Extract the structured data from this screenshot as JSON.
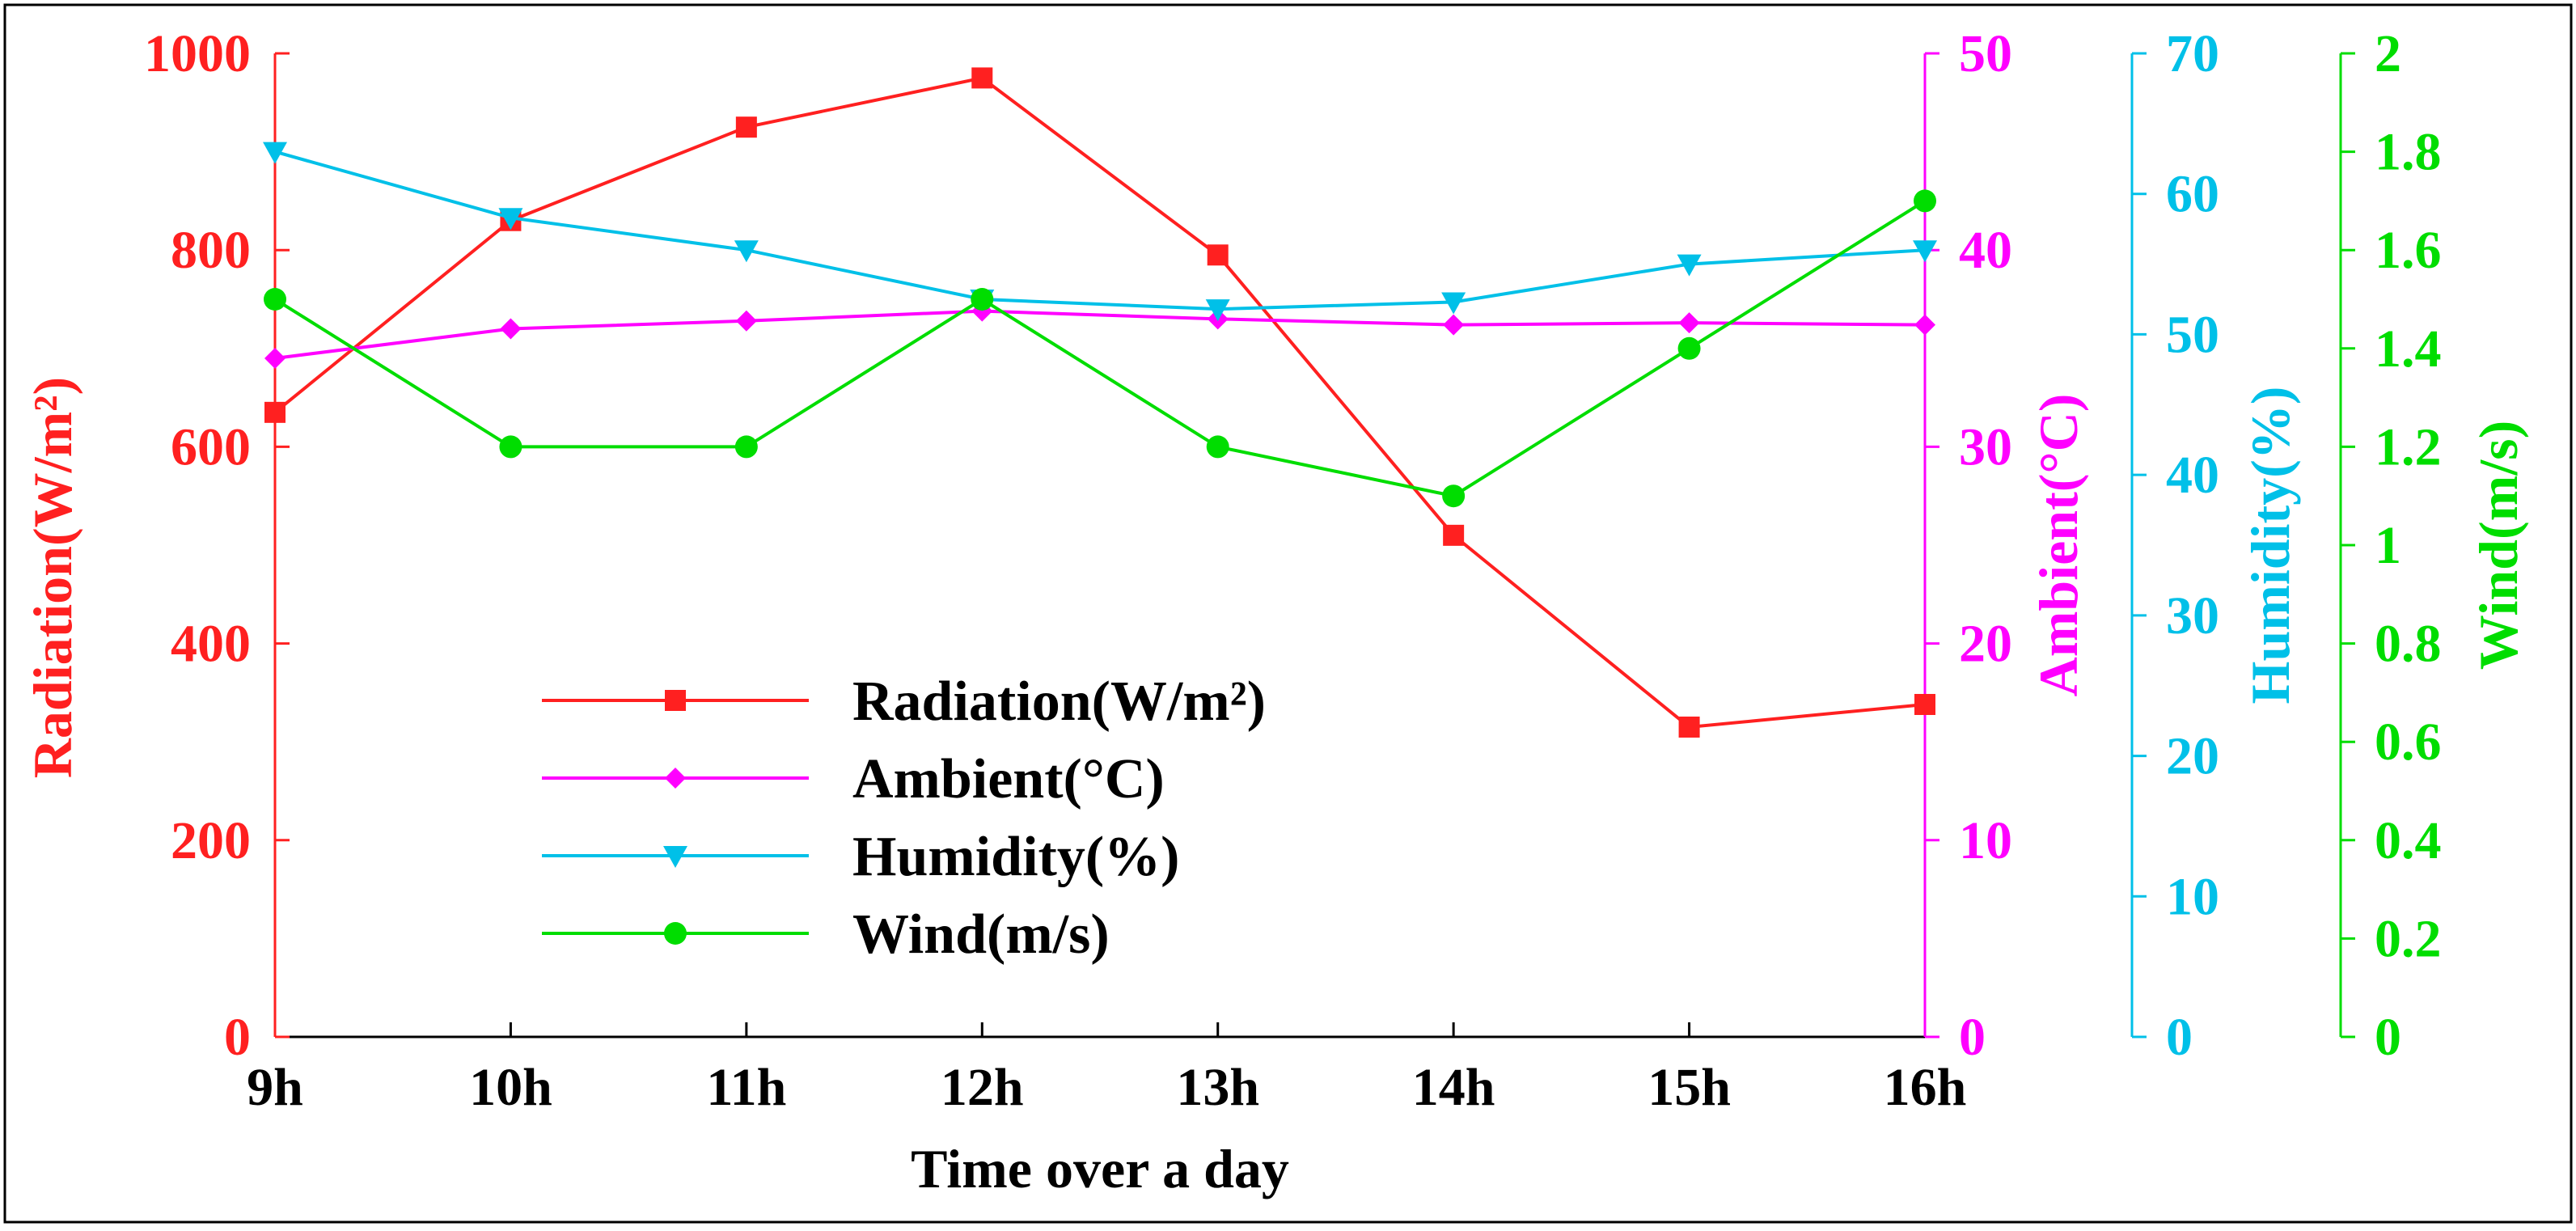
{
  "chart_data": {
    "type": "line",
    "title": "",
    "xlabel": "Time over a day",
    "categories": [
      "9h",
      "10h",
      "11h",
      "12h",
      "13h",
      "14h",
      "15h",
      "16h"
    ],
    "axes": [
      {
        "id": "radiation",
        "label": "Radiation(W/m²)",
        "side": "left",
        "color": "#ff2020",
        "ylim": [
          0,
          1000
        ],
        "ticks": [
          0,
          200,
          400,
          600,
          800,
          1000
        ],
        "tick_labels": [
          "0",
          "200",
          "400",
          "600",
          "800",
          "1000"
        ]
      },
      {
        "id": "ambient",
        "label": "Ambient(°C)",
        "side": "right",
        "color": "#ff00ff",
        "ylim": [
          0,
          50
        ],
        "ticks": [
          0,
          10,
          20,
          30,
          40,
          50
        ],
        "tick_labels": [
          "0",
          "10",
          "20",
          "30",
          "40",
          "50"
        ]
      },
      {
        "id": "humidity",
        "label": "Humidity(%)",
        "side": "right",
        "color": "#00c0e8",
        "ylim": [
          0,
          70
        ],
        "ticks": [
          0,
          10,
          20,
          30,
          40,
          50,
          60,
          70
        ],
        "tick_labels": [
          "0",
          "10",
          "20",
          "30",
          "40",
          "50",
          "60",
          "70"
        ]
      },
      {
        "id": "wind",
        "label": "Wind(m/s)",
        "side": "right",
        "color": "#00dd00",
        "ylim": [
          0,
          2
        ],
        "ticks": [
          0,
          0.2,
          0.4,
          0.6,
          0.8,
          1,
          1.2,
          1.4,
          1.6,
          1.8,
          2
        ],
        "tick_labels": [
          "0",
          "0.2",
          "0.4",
          "0.6",
          "0.8",
          "1",
          "1.2",
          "1.4",
          "1.6",
          "1.8",
          "2"
        ]
      }
    ],
    "series": [
      {
        "name": "Radiation(W/m²)",
        "axis": "radiation",
        "marker": "square",
        "color": "#ff2020",
        "values": [
          635,
          830,
          925,
          975,
          795,
          510,
          315,
          338
        ]
      },
      {
        "name": "Ambient(°C)",
        "axis": "ambient",
        "marker": "diamond",
        "color": "#ff00ff",
        "values": [
          34.5,
          36,
          36.4,
          36.9,
          36.5,
          36.2,
          36.3,
          36.2
        ]
      },
      {
        "name": "Humidity(%)",
        "axis": "humidity",
        "marker": "triangle-down",
        "color": "#00c0e8",
        "values": [
          63,
          58.3,
          56,
          52.5,
          51.8,
          52.3,
          55,
          56
        ]
      },
      {
        "name": "Wind(m/s)",
        "axis": "wind",
        "marker": "circle",
        "color": "#00dd00",
        "values": [
          1.5,
          1.2,
          1.2,
          1.5,
          1.2,
          1.1,
          1.4,
          1.7
        ]
      }
    ],
    "legend": {
      "position": "center-left",
      "entries": [
        "Radiation(W/m²)",
        "Ambient(°C)",
        "Humidity(%)",
        "Wind(m/s)"
      ]
    },
    "grid": false
  }
}
